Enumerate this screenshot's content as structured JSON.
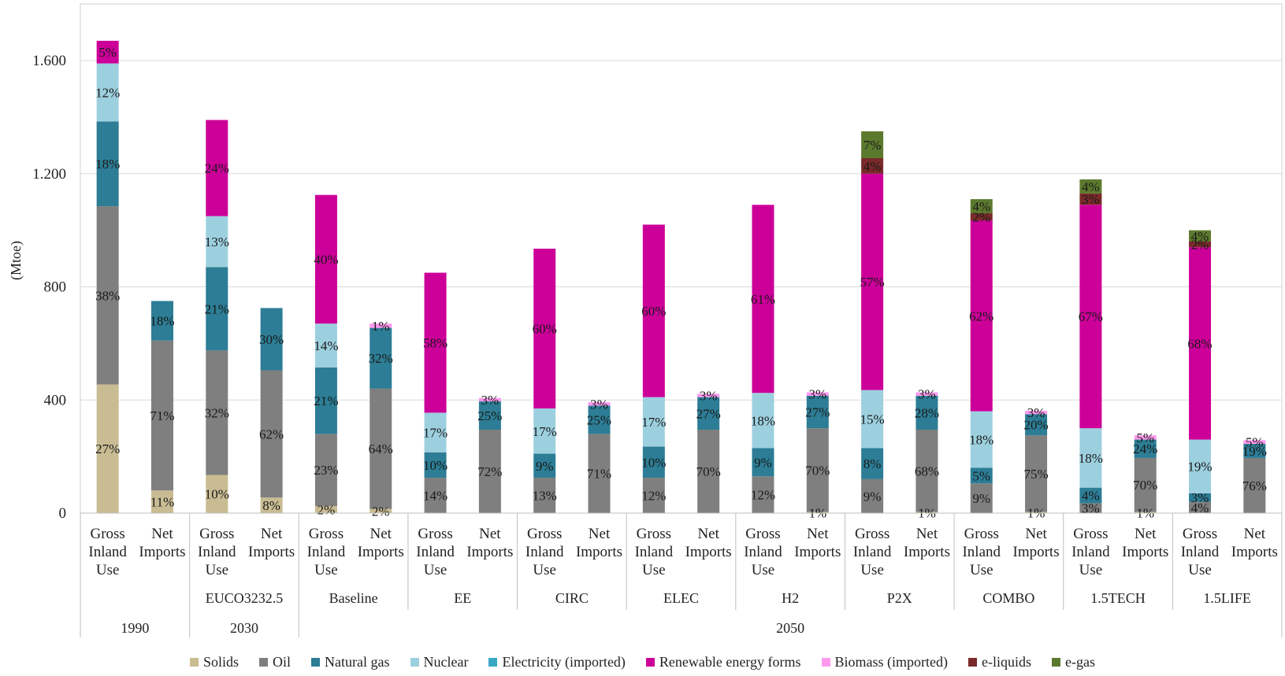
{
  "chart_data": {
    "type": "bar",
    "stacked": true,
    "ylabel": "(Mtoe)",
    "ylim": [
      0,
      1800
    ],
    "yticks": [
      0,
      400,
      800,
      1200,
      1600
    ],
    "ytick_labels": [
      "0",
      "400",
      "800",
      "1.200",
      "1.600"
    ],
    "grid": true,
    "legend_position": "bottom",
    "category_lines": [
      [
        "Gross",
        "Inland",
        "Use"
      ],
      [
        "Net",
        "Imports"
      ]
    ],
    "scenarios": [
      "",
      "EUCO3232.5",
      "Baseline",
      "EE",
      "CIRC",
      "ELEC",
      "H2",
      "P2X",
      "COMBO",
      "1.5TECH",
      "1.5LIFE"
    ],
    "years": [
      {
        "label": "1990",
        "from": 0,
        "to": 0
      },
      {
        "label": "2030",
        "from": 1,
        "to": 1
      },
      {
        "label": "2050",
        "from": 2,
        "to": 10
      }
    ],
    "series": [
      {
        "name": "Solids",
        "color": "#c9bc93"
      },
      {
        "name": "Oil",
        "color": "#7f7f7f"
      },
      {
        "name": "Natural gas",
        "color": "#2c7d95"
      },
      {
        "name": "Nuclear",
        "color": "#9dd0df"
      },
      {
        "name": "Electricity (imported)",
        "color": "#37a9c5"
      },
      {
        "name": "Renewable energy forms",
        "color": "#cc0099"
      },
      {
        "name": "Biomass (imported)",
        "color": "#ff99ee"
      },
      {
        "name": "e-liquids",
        "color": "#7a2a2a"
      },
      {
        "name": "e-gas",
        "color": "#5c7a2e"
      }
    ],
    "bars": [
      {
        "group": 0,
        "kind": 0,
        "segments": [
          {
            "s": 0,
            "v": 455,
            "label": "27%"
          },
          {
            "s": 1,
            "v": 630,
            "label": "38%"
          },
          {
            "s": 2,
            "v": 300,
            "label": "18%"
          },
          {
            "s": 3,
            "v": 205,
            "label": "12%"
          },
          {
            "s": 5,
            "v": 80,
            "label": "5%"
          }
        ]
      },
      {
        "group": 0,
        "kind": 1,
        "segments": [
          {
            "s": 0,
            "v": 80,
            "label": "11%"
          },
          {
            "s": 1,
            "v": 530,
            "label": "71%"
          },
          {
            "s": 2,
            "v": 140,
            "label": "18%"
          }
        ]
      },
      {
        "group": 1,
        "kind": 0,
        "segments": [
          {
            "s": 0,
            "v": 135,
            "label": "10%"
          },
          {
            "s": 1,
            "v": 440,
            "label": "32%"
          },
          {
            "s": 2,
            "v": 295,
            "label": "21%"
          },
          {
            "s": 3,
            "v": 180,
            "label": "13%"
          },
          {
            "s": 5,
            "v": 340,
            "label": "24%"
          }
        ]
      },
      {
        "group": 1,
        "kind": 1,
        "segments": [
          {
            "s": 0,
            "v": 55,
            "label": "8%"
          },
          {
            "s": 1,
            "v": 450,
            "label": "62%"
          },
          {
            "s": 2,
            "v": 220,
            "label": "30%"
          }
        ]
      },
      {
        "group": 2,
        "kind": 0,
        "segments": [
          {
            "s": 0,
            "v": 25,
            "label": "2%"
          },
          {
            "s": 1,
            "v": 255,
            "label": "23%"
          },
          {
            "s": 2,
            "v": 235,
            "label": "21%"
          },
          {
            "s": 3,
            "v": 155,
            "label": "14%"
          },
          {
            "s": 5,
            "v": 455,
            "label": "40%"
          }
        ]
      },
      {
        "group": 2,
        "kind": 1,
        "segments": [
          {
            "s": 0,
            "v": 15,
            "label": "2%"
          },
          {
            "s": 1,
            "v": 425,
            "label": "64%"
          },
          {
            "s": 2,
            "v": 215,
            "label": "32%"
          },
          {
            "s": 6,
            "v": 15,
            "label": "1%"
          }
        ]
      },
      {
        "group": 3,
        "kind": 0,
        "segments": [
          {
            "s": 1,
            "v": 125,
            "label": "14%"
          },
          {
            "s": 2,
            "v": 90,
            "label": "10%"
          },
          {
            "s": 3,
            "v": 140,
            "label": "17%"
          },
          {
            "s": 5,
            "v": 495,
            "label": "58%"
          }
        ]
      },
      {
        "group": 3,
        "kind": 1,
        "segments": [
          {
            "s": 1,
            "v": 295,
            "label": "72%"
          },
          {
            "s": 2,
            "v": 100,
            "label": "25%"
          },
          {
            "s": 6,
            "v": 12,
            "label": "3%"
          }
        ]
      },
      {
        "group": 4,
        "kind": 0,
        "segments": [
          {
            "s": 1,
            "v": 125,
            "label": "13%"
          },
          {
            "s": 2,
            "v": 85,
            "label": "9%"
          },
          {
            "s": 3,
            "v": 160,
            "label": "17%"
          },
          {
            "s": 5,
            "v": 565,
            "label": "60%"
          }
        ]
      },
      {
        "group": 4,
        "kind": 1,
        "segments": [
          {
            "s": 1,
            "v": 280,
            "label": "71%"
          },
          {
            "s": 2,
            "v": 100,
            "label": "25%"
          },
          {
            "s": 6,
            "v": 12,
            "label": "3%"
          }
        ]
      },
      {
        "group": 5,
        "kind": 0,
        "segments": [
          {
            "s": 1,
            "v": 125,
            "label": "12%"
          },
          {
            "s": 2,
            "v": 110,
            "label": "10%"
          },
          {
            "s": 3,
            "v": 175,
            "label": "17%"
          },
          {
            "s": 5,
            "v": 610,
            "label": "60%"
          }
        ]
      },
      {
        "group": 5,
        "kind": 1,
        "segments": [
          {
            "s": 1,
            "v": 295,
            "label": "70%"
          },
          {
            "s": 2,
            "v": 115,
            "label": "27%"
          },
          {
            "s": 6,
            "v": 12,
            "label": "3%"
          }
        ]
      },
      {
        "group": 6,
        "kind": 0,
        "segments": [
          {
            "s": 1,
            "v": 130,
            "label": "12%"
          },
          {
            "s": 2,
            "v": 100,
            "label": "9%"
          },
          {
            "s": 3,
            "v": 195,
            "label": "18%"
          },
          {
            "s": 5,
            "v": 665,
            "label": "61%"
          }
        ]
      },
      {
        "group": 6,
        "kind": 1,
        "segments": [
          {
            "s": 0,
            "v": 4,
            "label": "1%"
          },
          {
            "s": 1,
            "v": 296,
            "label": "70%"
          },
          {
            "s": 2,
            "v": 115,
            "label": "27%"
          },
          {
            "s": 6,
            "v": 12,
            "label": "3%"
          }
        ]
      },
      {
        "group": 7,
        "kind": 0,
        "segments": [
          {
            "s": 1,
            "v": 120,
            "label": "9%"
          },
          {
            "s": 2,
            "v": 110,
            "label": "8%"
          },
          {
            "s": 3,
            "v": 205,
            "label": "15%"
          },
          {
            "s": 5,
            "v": 765,
            "label": "57%"
          },
          {
            "s": 7,
            "v": 55,
            "label": "4%"
          },
          {
            "s": 8,
            "v": 95,
            "label": "7%"
          }
        ]
      },
      {
        "group": 7,
        "kind": 1,
        "segments": [
          {
            "s": 0,
            "v": 4,
            "label": "1%"
          },
          {
            "s": 1,
            "v": 291,
            "label": "68%"
          },
          {
            "s": 2,
            "v": 120,
            "label": "28%"
          },
          {
            "s": 6,
            "v": 12,
            "label": "3%"
          }
        ]
      },
      {
        "group": 8,
        "kind": 0,
        "segments": [
          {
            "s": 1,
            "v": 105,
            "label": "9%"
          },
          {
            "s": 2,
            "v": 55,
            "label": "5%"
          },
          {
            "s": 3,
            "v": 200,
            "label": "18%"
          },
          {
            "s": 5,
            "v": 675,
            "label": "62%"
          },
          {
            "s": 7,
            "v": 25,
            "label": "2%"
          },
          {
            "s": 8,
            "v": 50,
            "label": "4%"
          }
        ]
      },
      {
        "group": 8,
        "kind": 1,
        "segments": [
          {
            "s": 0,
            "v": 4,
            "label": "1%"
          },
          {
            "s": 1,
            "v": 271,
            "label": "75%"
          },
          {
            "s": 2,
            "v": 75,
            "label": "20%"
          },
          {
            "s": 6,
            "v": 12,
            "label": "3%"
          }
        ]
      },
      {
        "group": 9,
        "kind": 0,
        "segments": [
          {
            "s": 1,
            "v": 35,
            "label": "3%"
          },
          {
            "s": 2,
            "v": 55,
            "label": "4%"
          },
          {
            "s": 3,
            "v": 210,
            "label": "18%"
          },
          {
            "s": 5,
            "v": 790,
            "label": "67%"
          },
          {
            "s": 7,
            "v": 40,
            "label": "3%"
          },
          {
            "s": 8,
            "v": 50,
            "label": "4%"
          }
        ]
      },
      {
        "group": 9,
        "kind": 1,
        "segments": [
          {
            "s": 0,
            "v": 4,
            "label": "1%"
          },
          {
            "s": 1,
            "v": 191,
            "label": "70%"
          },
          {
            "s": 2,
            "v": 65,
            "label": "24%"
          },
          {
            "s": 6,
            "v": 15,
            "label": "5%"
          }
        ]
      },
      {
        "group": 10,
        "kind": 0,
        "segments": [
          {
            "s": 1,
            "v": 40,
            "label": "4%"
          },
          {
            "s": 2,
            "v": 30,
            "label": "3%"
          },
          {
            "s": 3,
            "v": 190,
            "label": "19%"
          },
          {
            "s": 5,
            "v": 680,
            "label": "68%"
          },
          {
            "s": 7,
            "v": 20,
            "label": "2%"
          },
          {
            "s": 8,
            "v": 40,
            "label": "4%"
          }
        ]
      },
      {
        "group": 10,
        "kind": 1,
        "segments": [
          {
            "s": 1,
            "v": 195,
            "label": "76%"
          },
          {
            "s": 2,
            "v": 50,
            "label": "19%"
          },
          {
            "s": 6,
            "v": 13,
            "label": "5%"
          }
        ]
      }
    ]
  }
}
